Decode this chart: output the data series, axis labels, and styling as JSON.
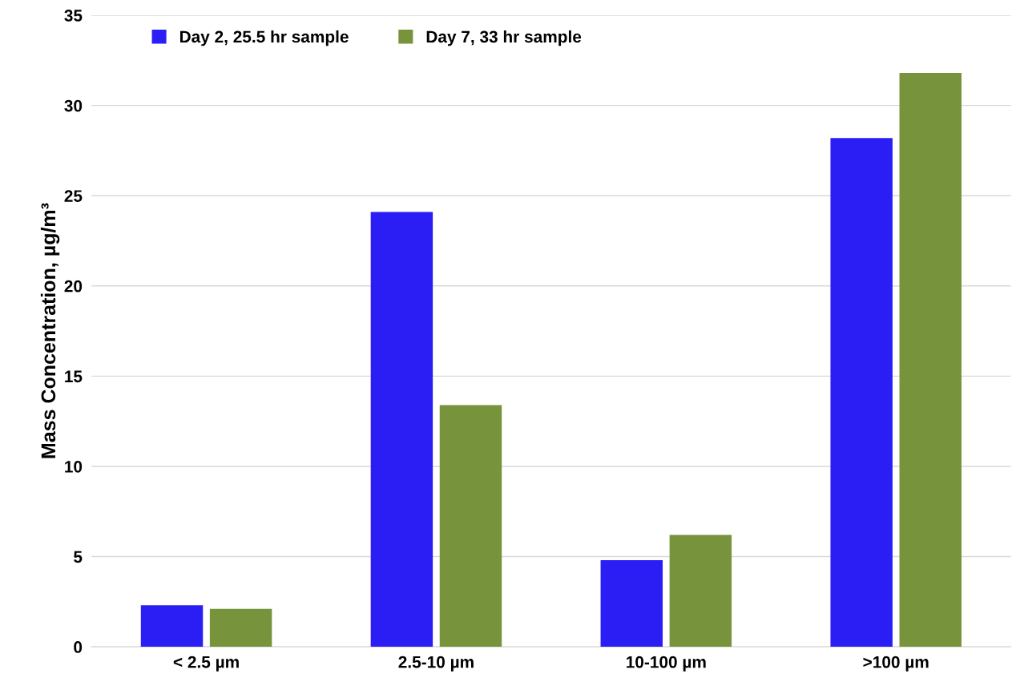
{
  "chart_data": {
    "type": "bar",
    "ylabel": "Mass Concentration, µg/m³",
    "categories": [
      "< 2.5 µm",
      "2.5-10 µm",
      "10-100 µm",
      ">100 µm"
    ],
    "series": [
      {
        "name": "Day 2, 25.5 hr sample",
        "color": "#2a1ef5",
        "values": [
          2.3,
          24.1,
          4.8,
          28.2
        ]
      },
      {
        "name": "Day 7, 33 hr sample",
        "color": "#77933c",
        "values": [
          2.1,
          13.4,
          6.2,
          31.8
        ]
      }
    ],
    "ylim": [
      0,
      35
    ],
    "yticks": [
      0,
      5,
      10,
      15,
      20,
      25,
      30,
      35
    ],
    "grid": "y",
    "legend": "top left"
  }
}
